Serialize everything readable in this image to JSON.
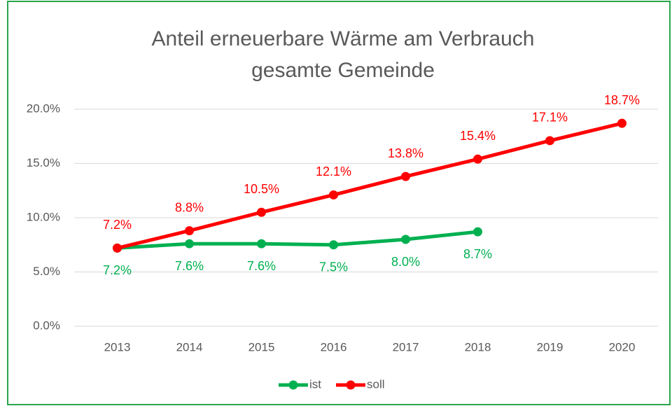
{
  "chart_data": {
    "type": "line",
    "title": [
      "Anteil erneuerbare Wärme am Verbrauch",
      "gesamte Gemeinde"
    ],
    "categories": [
      "2013",
      "2014",
      "2015",
      "2016",
      "2017",
      "2018",
      "2019",
      "2020"
    ],
    "series": [
      {
        "name": "ist",
        "color": "#00b050",
        "values": [
          7.2,
          7.6,
          7.6,
          7.5,
          8.0,
          8.7,
          null,
          null
        ],
        "value_labels": [
          "7.2%",
          "7.6%",
          "7.6%",
          "7.5%",
          "8.0%",
          "8.7%",
          null,
          null
        ]
      },
      {
        "name": "soll",
        "color": "#ff0000",
        "values": [
          7.2,
          8.8,
          10.5,
          12.1,
          13.8,
          15.4,
          17.1,
          18.7
        ],
        "value_labels": [
          "7.2%",
          "8.8%",
          "10.5%",
          "12.1%",
          "13.8%",
          "15.4%",
          "17.1%",
          "18.7%"
        ]
      }
    ],
    "ylim": [
      0,
      20
    ],
    "yticks": [
      {
        "value": 0,
        "label": "0.0%"
      },
      {
        "value": 5,
        "label": "5.0%"
      },
      {
        "value": 10,
        "label": "10.0%"
      },
      {
        "value": 15,
        "label": "15.0%"
      },
      {
        "value": 20,
        "label": "20.0%"
      }
    ],
    "grid": true,
    "legend": "bottom"
  }
}
